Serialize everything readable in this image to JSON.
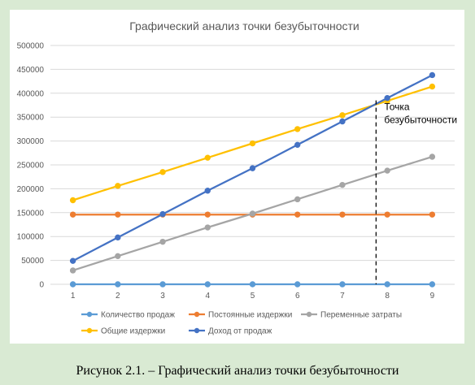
{
  "caption": "Рисунок 2.1. – Графический анализ точки безубыточности",
  "colors": {
    "background": "#d9ead3",
    "panel": "#ffffff",
    "grid": "#d9d9d9",
    "axis_text": "#595959"
  },
  "chart_data": {
    "type": "line",
    "title": "Графический анализ точки безубыточности",
    "xlabel": "",
    "ylabel": "",
    "categories": [
      "1",
      "2",
      "3",
      "4",
      "5",
      "6",
      "7",
      "8",
      "9"
    ],
    "x": [
      1,
      2,
      3,
      4,
      5,
      6,
      7,
      8,
      9
    ],
    "ylim": [
      0,
      500000
    ],
    "yticks": [
      0,
      50000,
      100000,
      150000,
      200000,
      250000,
      300000,
      350000,
      400000,
      450000,
      500000
    ],
    "ytick_labels": [
      "0",
      "50000",
      "100000",
      "150000",
      "200000",
      "250000",
      "300000",
      "350000",
      "400000",
      "450000",
      "500000"
    ],
    "grid": true,
    "legend_position": "bottom",
    "series": [
      {
        "name": "Количество продаж",
        "color": "#5b9bd5",
        "values": [
          1,
          2,
          3,
          4,
          5,
          6,
          7,
          8,
          9
        ]
      },
      {
        "name": "Постоянные издержки",
        "color": "#ed7d31",
        "values": [
          146000,
          146000,
          146000,
          146000,
          146000,
          146000,
          146000,
          146000,
          146000
        ]
      },
      {
        "name": "Переменные затраты",
        "color": "#a5a5a5",
        "values": [
          29000,
          59000,
          89000,
          119000,
          148000,
          178000,
          208000,
          238000,
          267000
        ]
      },
      {
        "name": "Общие издержки",
        "color": "#ffc000",
        "values": [
          176000,
          206000,
          235000,
          265000,
          295000,
          325000,
          354000,
          384000,
          414000
        ]
      },
      {
        "name": "Доход от продаж",
        "color": "#4472c4",
        "values": [
          49000,
          98000,
          147000,
          196000,
          243000,
          292000,
          341000,
          390000,
          438000
        ]
      }
    ],
    "annotation": {
      "text_lines": [
        "Точка",
        "безубыточности"
      ],
      "x": 7.75,
      "line_style": "dashed"
    }
  }
}
